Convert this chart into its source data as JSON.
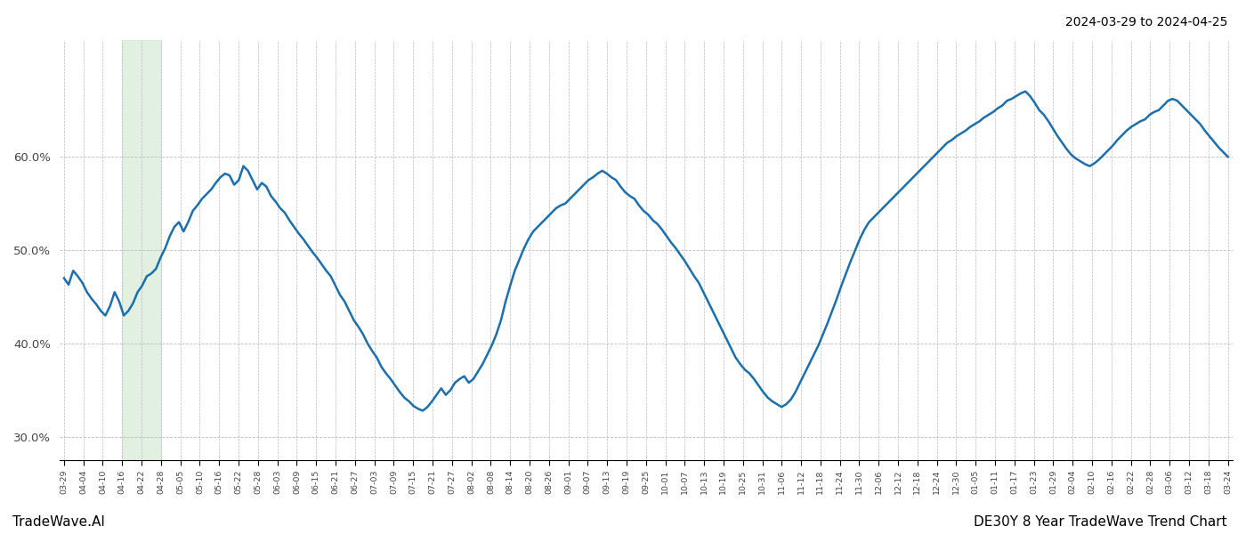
{
  "title_topright": "2024-03-29 to 2024-04-25",
  "bottom_left": "TradeWave.AI",
  "bottom_right": "DE30Y 8 Year TradeWave Trend Chart",
  "ylim": [
    0.275,
    0.725
  ],
  "yticks": [
    0.3,
    0.4,
    0.5,
    0.6
  ],
  "line_color": "#1c6fad",
  "line_width": 1.8,
  "shaded_color": "#d6ead6",
  "shaded_alpha": 0.7,
  "background_color": "#ffffff",
  "grid_color": "#bbbbbb",
  "x_labels": [
    "03-29",
    "04-04",
    "04-10",
    "04-16",
    "04-22",
    "04-28",
    "05-05",
    "05-10",
    "05-16",
    "05-22",
    "05-28",
    "06-03",
    "06-09",
    "06-15",
    "06-21",
    "06-27",
    "07-03",
    "07-09",
    "07-15",
    "07-21",
    "07-27",
    "08-02",
    "08-08",
    "08-14",
    "08-20",
    "08-26",
    "09-01",
    "09-07",
    "09-13",
    "09-19",
    "09-25",
    "10-01",
    "10-07",
    "10-13",
    "10-19",
    "10-25",
    "10-31",
    "11-06",
    "11-12",
    "11-18",
    "11-24",
    "11-30",
    "12-06",
    "12-12",
    "12-18",
    "12-24",
    "12-30",
    "01-05",
    "01-11",
    "01-17",
    "01-23",
    "01-29",
    "02-04",
    "02-10",
    "02-16",
    "02-22",
    "02-28",
    "03-06",
    "03-12",
    "03-18",
    "03-24"
  ],
  "shaded_region_label_start": "04-16",
  "shaded_region_label_end": "04-28",
  "y_values": [
    0.47,
    0.463,
    0.478,
    0.472,
    0.465,
    0.455,
    0.448,
    0.442,
    0.435,
    0.43,
    0.44,
    0.455,
    0.445,
    0.43,
    0.435,
    0.443,
    0.455,
    0.462,
    0.472,
    0.475,
    0.48,
    0.492,
    0.502,
    0.515,
    0.525,
    0.53,
    0.52,
    0.53,
    0.542,
    0.548,
    0.555,
    0.56,
    0.565,
    0.572,
    0.578,
    0.582,
    0.58,
    0.57,
    0.575,
    0.59,
    0.585,
    0.575,
    0.565,
    0.572,
    0.568,
    0.558,
    0.552,
    0.545,
    0.54,
    0.532,
    0.525,
    0.518,
    0.512,
    0.505,
    0.498,
    0.492,
    0.485,
    0.478,
    0.472,
    0.462,
    0.452,
    0.445,
    0.435,
    0.425,
    0.418,
    0.41,
    0.4,
    0.392,
    0.385,
    0.375,
    0.368,
    0.362,
    0.355,
    0.348,
    0.342,
    0.338,
    0.333,
    0.33,
    0.328,
    0.332,
    0.338,
    0.345,
    0.352,
    0.345,
    0.35,
    0.358,
    0.362,
    0.365,
    0.358,
    0.362,
    0.37,
    0.378,
    0.388,
    0.398,
    0.41,
    0.425,
    0.445,
    0.462,
    0.478,
    0.49,
    0.502,
    0.512,
    0.52,
    0.525,
    0.53,
    0.535,
    0.54,
    0.545,
    0.548,
    0.55,
    0.555,
    0.56,
    0.565,
    0.57,
    0.575,
    0.578,
    0.582,
    0.585,
    0.582,
    0.578,
    0.575,
    0.568,
    0.562,
    0.558,
    0.555,
    0.548,
    0.542,
    0.538,
    0.532,
    0.528,
    0.522,
    0.515,
    0.508,
    0.502,
    0.495,
    0.488,
    0.48,
    0.472,
    0.465,
    0.455,
    0.445,
    0.435,
    0.425,
    0.415,
    0.405,
    0.395,
    0.385,
    0.378,
    0.372,
    0.368,
    0.362,
    0.355,
    0.348,
    0.342,
    0.338,
    0.335,
    0.332,
    0.335,
    0.34,
    0.348,
    0.358,
    0.368,
    0.378,
    0.388,
    0.398,
    0.41,
    0.422,
    0.435,
    0.448,
    0.462,
    0.475,
    0.488,
    0.5,
    0.512,
    0.522,
    0.53,
    0.535,
    0.54,
    0.545,
    0.55,
    0.555,
    0.56,
    0.565,
    0.57,
    0.575,
    0.58,
    0.585,
    0.59,
    0.595,
    0.6,
    0.605,
    0.61,
    0.615,
    0.618,
    0.622,
    0.625,
    0.628,
    0.632,
    0.635,
    0.638,
    0.642,
    0.645,
    0.648,
    0.652,
    0.655,
    0.66,
    0.662,
    0.665,
    0.668,
    0.67,
    0.665,
    0.658,
    0.65,
    0.645,
    0.638,
    0.63,
    0.622,
    0.615,
    0.608,
    0.602,
    0.598,
    0.595,
    0.592,
    0.59,
    0.593,
    0.597,
    0.602,
    0.607,
    0.612,
    0.618,
    0.623,
    0.628,
    0.632,
    0.635,
    0.638,
    0.64,
    0.645,
    0.648,
    0.65,
    0.655,
    0.66,
    0.662,
    0.66,
    0.655,
    0.65,
    0.645,
    0.64,
    0.635,
    0.628,
    0.622,
    0.616,
    0.61,
    0.605,
    0.6
  ]
}
